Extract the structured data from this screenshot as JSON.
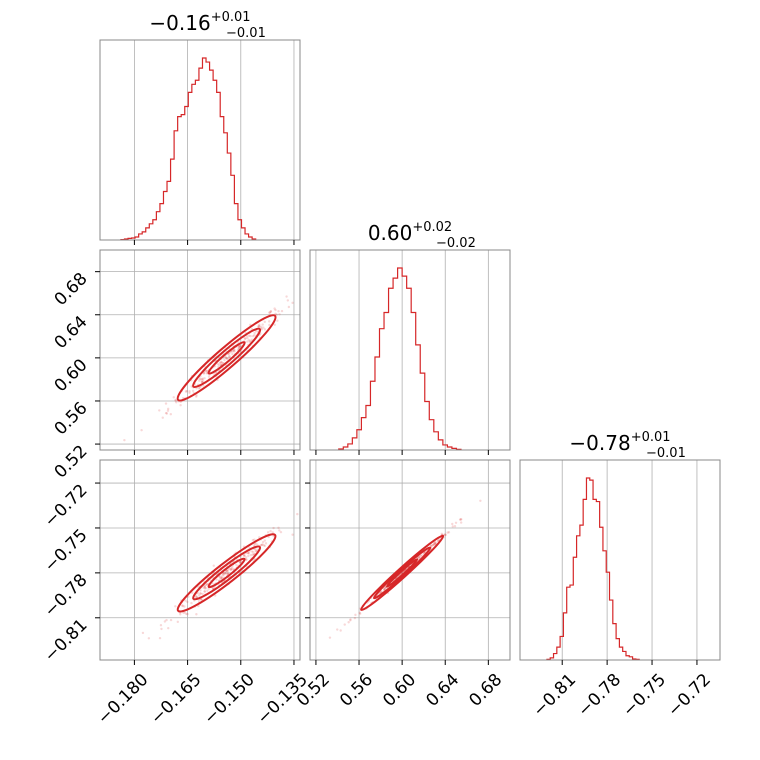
{
  "chart_data": {
    "type": "corner",
    "color": "#d62728",
    "parameters": [
      {
        "title": {
          "value": "−0.16",
          "plus": "+0.01",
          "minus": "−0.01"
        },
        "range": [
          -0.1897,
          -0.1333
        ],
        "ticks": [
          -0.18,
          -0.165,
          -0.15,
          -0.135
        ],
        "tick_labels": [
          "−0.180",
          "−0.165",
          "−0.150",
          "−0.135"
        ],
        "hist": {
          "start": -0.1838,
          "step": 0.001,
          "counts": [
            0.2,
            0.5,
            0.8,
            1,
            1.5,
            3,
            4,
            6,
            8,
            10,
            14,
            18,
            24,
            29,
            40,
            54,
            61,
            62,
            66,
            73,
            77,
            79,
            85,
            90,
            88,
            84,
            79,
            73,
            61,
            53,
            43,
            32,
            18,
            10,
            6,
            3,
            1.5,
            0.5
          ]
        }
      },
      {
        "title": {
          "value": "0.60",
          "plus": "+0.02",
          "minus": "−0.02"
        },
        "range": [
          0.5145,
          0.7001
        ],
        "ticks": [
          0.52,
          0.56,
          0.6,
          0.64,
          0.68
        ],
        "tick_labels": [
          "0.52",
          "0.56",
          "0.60",
          "0.64",
          "0.68"
        ],
        "hist": {
          "start": 0.5412,
          "step": 0.0042,
          "counts": [
            0.5,
            1.5,
            3,
            6,
            10,
            16,
            22,
            34,
            46,
            60,
            68,
            80,
            85,
            90,
            86,
            80,
            68,
            52,
            38,
            24,
            15,
            9,
            5,
            2.5,
            1.5,
            0.8,
            0.3
          ]
        }
      },
      {
        "title": {
          "value": "−0.78",
          "plus": "+0.01",
          "minus": "−0.01"
        },
        "range": [
          -0.8382,
          -0.7046
        ],
        "ticks": [
          -0.81,
          -0.78,
          -0.75,
          -0.72
        ],
        "tick_labels": [
          "−0.81",
          "−0.78",
          "−0.75",
          "−0.72"
        ],
        "hist": {
          "start": -0.8202,
          "step": 0.0022,
          "counts": [
            0.3,
            1,
            3,
            6,
            11,
            22,
            34,
            35,
            48,
            58,
            63,
            75,
            85,
            84,
            75,
            74,
            62,
            51,
            41,
            28,
            17,
            10,
            6,
            4,
            2,
            1.5,
            0.5,
            0.3
          ]
        }
      }
    ],
    "xlabel": "",
    "ylabel": "",
    "grid": true,
    "legend": "none"
  }
}
